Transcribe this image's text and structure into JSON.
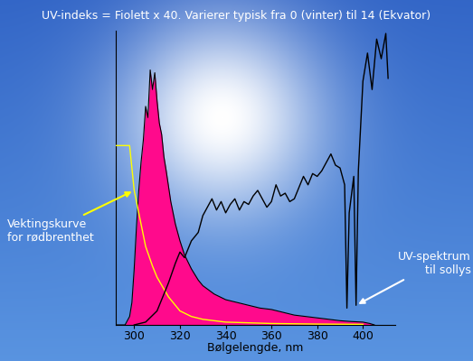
{
  "chart_data": {
    "type": "line",
    "title": "UV-indeks = Fiolett x 40. Varierer typisk fra 0 (vinter) til 14 (Ekvator)",
    "x_label": "Bølgelengde, nm",
    "xlim": [
      292,
      414
    ],
    "xticks": [
      300,
      320,
      340,
      360,
      380,
      400
    ],
    "ylim": [
      0,
      105
    ],
    "tick_labels": "x",
    "grid": false,
    "series": [
      {
        "type": "area",
        "color": "#ff0a8c",
        "x": [
          292,
          296,
          298,
          299,
          300,
          301,
          302,
          303,
          304,
          305,
          306,
          307,
          308,
          309,
          310,
          311,
          312,
          313,
          314,
          316,
          318,
          320,
          322,
          325,
          328,
          330,
          335,
          340,
          345,
          350,
          355,
          360,
          365,
          370,
          375,
          380,
          385,
          390,
          395,
          400,
          403,
          405
        ],
        "values": [
          0,
          0,
          3,
          8,
          20,
          35,
          48,
          58,
          66,
          78,
          74,
          91,
          84,
          90,
          80,
          72,
          68,
          60,
          55,
          44,
          36,
          30,
          25,
          20,
          16,
          14,
          11,
          9,
          8,
          7,
          6,
          5.5,
          4.5,
          3.5,
          3,
          2.5,
          2,
          1.5,
          1.2,
          1,
          0.5,
          0
        ]
      },
      {
        "type": "line",
        "name": "Vektingskurve\nfor rødbrenthet",
        "color": "#ffff00",
        "x": [
          292,
          298,
          300,
          302,
          305,
          308,
          310,
          315,
          320,
          325,
          330,
          340,
          360,
          380,
          400
        ],
        "values": [
          64,
          64,
          48,
          40,
          28,
          21,
          17,
          10,
          5,
          3,
          2,
          1,
          0.5,
          0.3,
          0.2
        ]
      },
      {
        "type": "line",
        "name": "UV-spektrum\ntil sollys",
        "color": "#000000",
        "x": [
          300,
          305,
          310,
          315,
          318,
          320,
          322,
          325,
          328,
          330,
          332,
          334,
          336,
          338,
          340,
          342,
          344,
          346,
          348,
          350,
          352,
          354,
          356,
          358,
          360,
          362,
          364,
          366,
          368,
          370,
          372,
          374,
          376,
          378,
          380,
          382,
          384,
          386,
          388,
          390,
          392,
          393,
          394,
          396,
          397,
          398,
          400,
          402,
          404,
          406,
          408,
          410,
          411
        ],
        "values": [
          0,
          1,
          5,
          15,
          22,
          26,
          24,
          30,
          33,
          39,
          42,
          45,
          41,
          44,
          40,
          43,
          45,
          41,
          44,
          43,
          46,
          48,
          45,
          42,
          44,
          50,
          46,
          47,
          44,
          45,
          49,
          53,
          50,
          54,
          53,
          55,
          58,
          61,
          57,
          56,
          50,
          6,
          40,
          53,
          7,
          55,
          87,
          97,
          84,
          102,
          95,
          104,
          88
        ]
      }
    ]
  }
}
